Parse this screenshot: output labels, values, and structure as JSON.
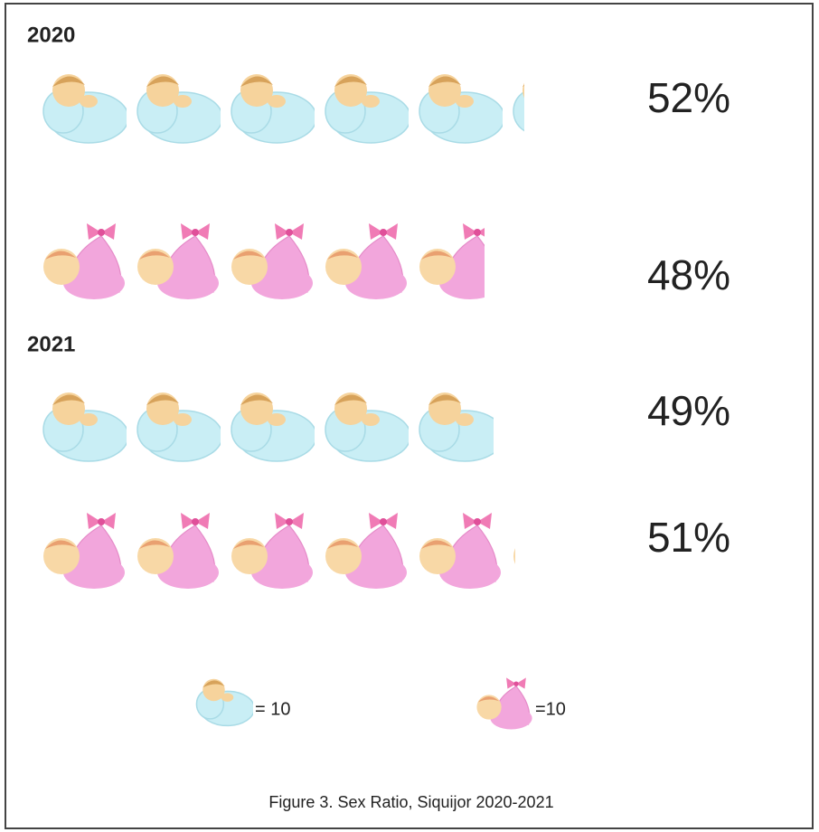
{
  "chart_data": {
    "type": "pictograph",
    "title": "Figure 3. Sex Ratio, Siquijor 2020-2021",
    "groups": [
      {
        "name": "2020",
        "values": [
          52,
          48
        ],
        "value_labels": [
          "52%",
          "48%"
        ]
      },
      {
        "name": "2021",
        "values": [
          49,
          51
        ],
        "value_labels": [
          "49%",
          "51%"
        ]
      }
    ],
    "icon_colors": [
      "#c9eef5",
      "#f2a6dc"
    ],
    "legend": [
      {
        "value": 10,
        "label": "= 10"
      },
      {
        "value": 10,
        "label": "=10"
      }
    ]
  }
}
